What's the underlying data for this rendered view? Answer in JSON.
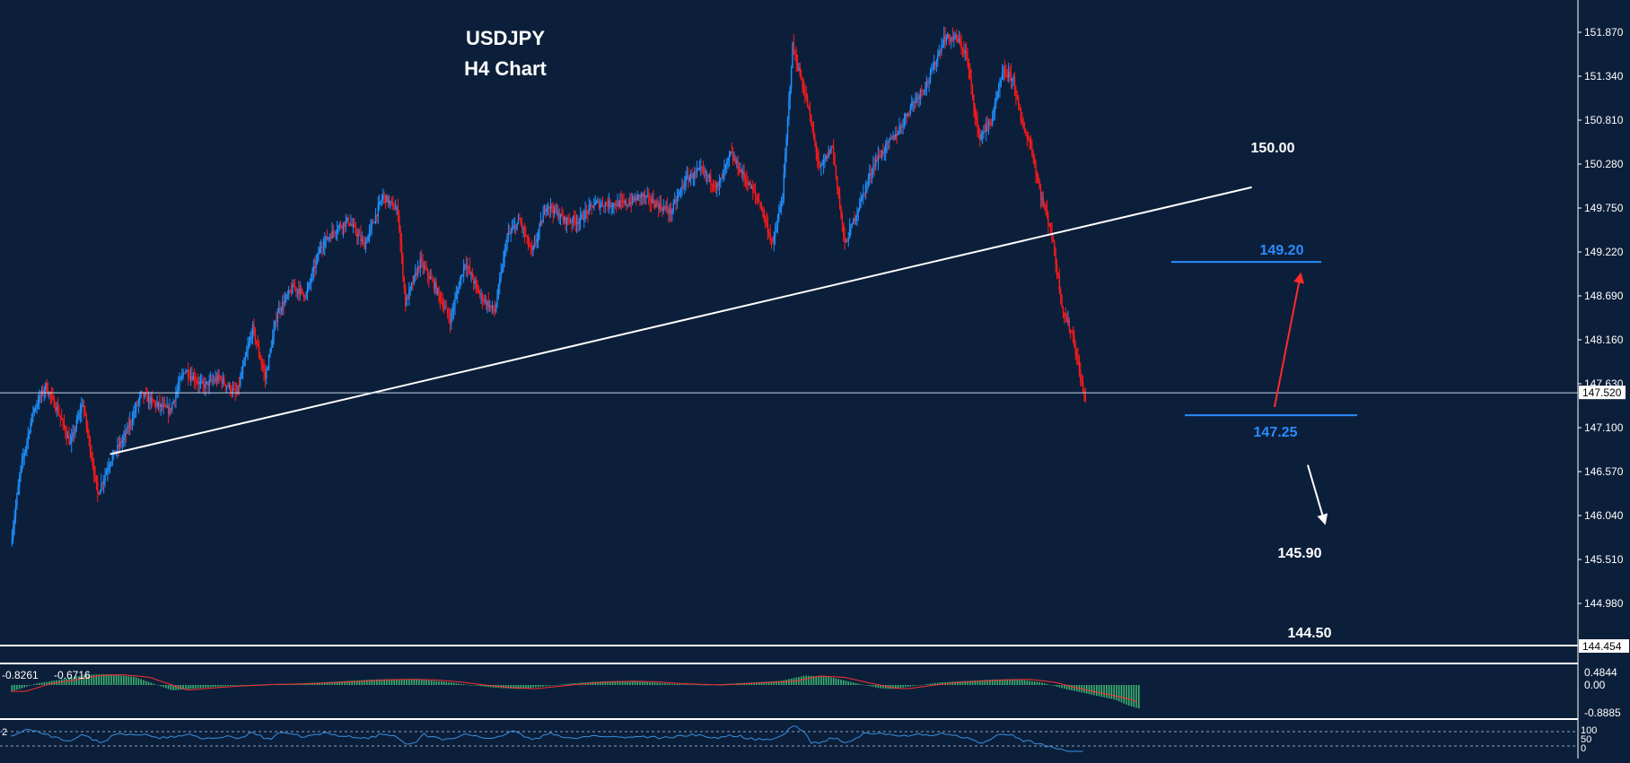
{
  "chart_data": [
    {
      "type": "candlestick",
      "title": "USDJPY",
      "subtitle": "H4 Chart",
      "yaxis_ticks": [
        "151.870",
        "151.340",
        "150.810",
        "150.280",
        "149.750",
        "149.220",
        "148.690",
        "148.160",
        "147.630",
        "147.100",
        "146.570",
        "146.040",
        "145.510",
        "144.980"
      ],
      "ylim": [
        144.454,
        152.05
      ],
      "current_price": "147.520",
      "bottom_price": "144.454",
      "colors": {
        "background": "#0c1f3a",
        "bull": "#1e90ff",
        "bear": "#ff1a1a",
        "trendline": "#ffffff",
        "level": "#2a8cff",
        "grid": "#ffffff"
      },
      "close_path": [
        [
          0,
          145.7
        ],
        [
          8,
          146.6
        ],
        [
          18,
          147.3
        ],
        [
          28,
          147.6
        ],
        [
          38,
          147.3
        ],
        [
          48,
          146.9
        ],
        [
          58,
          147.4
        ],
        [
          70,
          146.3
        ],
        [
          80,
          146.7
        ],
        [
          92,
          147.0
        ],
        [
          105,
          147.5
        ],
        [
          115,
          147.4
        ],
        [
          128,
          147.3
        ],
        [
          140,
          147.8
        ],
        [
          155,
          147.6
        ],
        [
          168,
          147.7
        ],
        [
          182,
          147.5
        ],
        [
          195,
          148.3
        ],
        [
          205,
          147.7
        ],
        [
          215,
          148.5
        ],
        [
          228,
          148.8
        ],
        [
          238,
          148.7
        ],
        [
          250,
          149.3
        ],
        [
          262,
          149.5
        ],
        [
          272,
          149.6
        ],
        [
          285,
          149.3
        ],
        [
          300,
          149.9
        ],
        [
          312,
          149.7
        ],
        [
          318,
          148.6
        ],
        [
          330,
          149.1
        ],
        [
          342,
          148.8
        ],
        [
          354,
          148.4
        ],
        [
          366,
          149.1
        ],
        [
          378,
          148.7
        ],
        [
          390,
          148.5
        ],
        [
          400,
          149.4
        ],
        [
          410,
          149.6
        ],
        [
          420,
          149.2
        ],
        [
          432,
          149.8
        ],
        [
          446,
          149.6
        ],
        [
          458,
          149.6
        ],
        [
          470,
          149.8
        ],
        [
          482,
          149.8
        ],
        [
          496,
          149.8
        ],
        [
          508,
          149.9
        ],
        [
          520,
          149.8
        ],
        [
          532,
          149.7
        ],
        [
          544,
          150.1
        ],
        [
          556,
          150.2
        ],
        [
          570,
          150.0
        ],
        [
          580,
          150.4
        ],
        [
          592,
          150.1
        ],
        [
          604,
          149.8
        ],
        [
          614,
          149.3
        ],
        [
          622,
          149.9
        ],
        [
          630,
          151.7
        ],
        [
          642,
          151.0
        ],
        [
          652,
          150.2
        ],
        [
          662,
          150.5
        ],
        [
          672,
          149.3
        ],
        [
          684,
          149.8
        ],
        [
          696,
          150.3
        ],
        [
          706,
          150.5
        ],
        [
          716,
          150.7
        ],
        [
          726,
          151.0
        ],
        [
          740,
          151.3
        ],
        [
          752,
          151.8
        ],
        [
          762,
          151.8
        ],
        [
          770,
          151.6
        ],
        [
          780,
          150.6
        ],
        [
          790,
          150.8
        ],
        [
          800,
          151.4
        ],
        [
          808,
          151.3
        ],
        [
          814,
          150.8
        ],
        [
          822,
          150.5
        ],
        [
          830,
          149.9
        ],
        [
          838,
          149.5
        ],
        [
          842,
          149.1
        ],
        [
          848,
          148.5
        ],
        [
          856,
          148.2
        ],
        [
          862,
          147.7
        ],
        [
          866,
          147.4
        ]
      ],
      "trendline": [
        [
          0,
          146.5
        ],
        [
          1000,
          150.0
        ]
      ],
      "levels": [
        {
          "label": "150.00",
          "price": 150.02,
          "kind": "label",
          "color": "#ffffff"
        },
        {
          "label": "149.20",
          "price": 149.1,
          "kind": "line",
          "color": "#2a8cff"
        },
        {
          "label": "147.25",
          "price": 147.25,
          "kind": "line",
          "color": "#2a8cff"
        },
        {
          "label": "145.90",
          "price": 145.9,
          "kind": "label",
          "color": "#ffffff"
        },
        {
          "label": "144.50",
          "price": 144.5,
          "kind": "label",
          "color": "#ffffff"
        }
      ],
      "arrows": [
        {
          "name": "up-arrow",
          "color": "#ff2a2a",
          "from_price": 147.35,
          "to_price": 148.95
        },
        {
          "name": "down-arrow",
          "color": "#ffffff",
          "from_price": 146.65,
          "to_price": 145.95
        }
      ]
    },
    {
      "type": "bar",
      "name": "macd",
      "labels": [
        "-0.8261",
        "-0.6716"
      ],
      "yaxis_ticks": [
        "0.4844",
        "0.00",
        "-0.8885"
      ],
      "colors": {
        "hist": "#3cb371",
        "signal": "#ff3030"
      },
      "hist_path": [
        [
          0,
          -0.25
        ],
        [
          20,
          0.05
        ],
        [
          40,
          0.2
        ],
        [
          60,
          0.38
        ],
        [
          80,
          0.4
        ],
        [
          100,
          0.3
        ],
        [
          115,
          0.05
        ],
        [
          130,
          -0.2
        ],
        [
          150,
          -0.12
        ],
        [
          170,
          -0.05
        ],
        [
          200,
          0.02
        ],
        [
          230,
          0.05
        ],
        [
          260,
          0.12
        ],
        [
          290,
          0.2
        ],
        [
          310,
          0.22
        ],
        [
          330,
          0.2
        ],
        [
          350,
          0.12
        ],
        [
          370,
          0.0
        ],
        [
          390,
          -0.1
        ],
        [
          410,
          -0.15
        ],
        [
          430,
          -0.05
        ],
        [
          450,
          0.05
        ],
        [
          470,
          0.12
        ],
        [
          490,
          0.15
        ],
        [
          510,
          0.12
        ],
        [
          530,
          0.05
        ],
        [
          560,
          0.0
        ],
        [
          580,
          0.05
        ],
        [
          600,
          0.1
        ],
        [
          620,
          0.15
        ],
        [
          640,
          0.35
        ],
        [
          660,
          0.3
        ],
        [
          680,
          0.08
        ],
        [
          700,
          -0.12
        ],
        [
          710,
          -0.15
        ],
        [
          730,
          -0.02
        ],
        [
          750,
          0.1
        ],
        [
          770,
          0.15
        ],
        [
          790,
          0.2
        ],
        [
          810,
          0.22
        ],
        [
          830,
          0.1
        ],
        [
          850,
          -0.15
        ],
        [
          870,
          -0.35
        ],
        [
          890,
          -0.55
        ],
        [
          900,
          -0.75
        ],
        [
          910,
          -0.89
        ]
      ]
    },
    {
      "type": "line",
      "name": "oscillator",
      "labels": [
        "2",
        "100",
        "50",
        "0"
      ],
      "colors": {
        "line": "#3a8fe0"
      }
    }
  ]
}
